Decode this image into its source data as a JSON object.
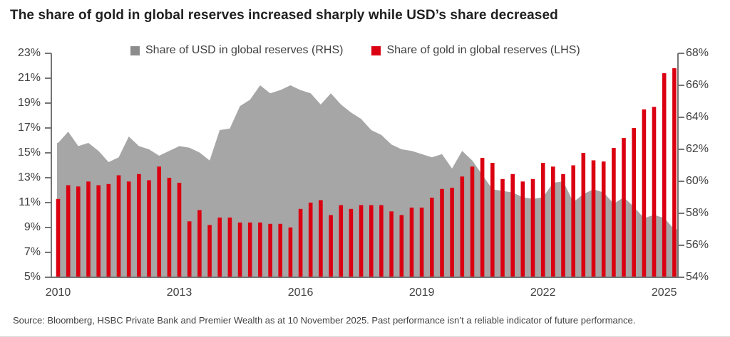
{
  "title": "The share of gold in global reserves increased sharply while USD’s share decreased",
  "source": "Source: Bloomberg, HSBC Private Bank and Premier Wealth as at 10 November 2025. Past performance isn’t a reliable indicator of future performance.",
  "legend": {
    "usd": "Share of USD in global reserves (RHS)",
    "gold": "Share of gold in global reserves (LHS)"
  },
  "colors": {
    "gold_bar": "#db0011",
    "usd_area": "#a6a6a6",
    "legend_usd_swatch": "#8c8c8c",
    "axis": "#757575",
    "tick_text": "#3f3f3f",
    "title_text": "#1f1f1f",
    "source_text": "#404040"
  },
  "chart_data": {
    "type": "combo-bar-area",
    "title": "The share of gold in global reserves increased sharply while USD’s share decreased",
    "grid": false,
    "legend_position": "top",
    "x_quarters": [
      "2010 Q1",
      "2010 Q2",
      "2010 Q3",
      "2010 Q4",
      "2011 Q1",
      "2011 Q2",
      "2011 Q3",
      "2011 Q4",
      "2012 Q1",
      "2012 Q2",
      "2012 Q3",
      "2012 Q4",
      "2013 Q1",
      "2013 Q2",
      "2013 Q3",
      "2013 Q4",
      "2014 Q1",
      "2014 Q2",
      "2014 Q3",
      "2014 Q4",
      "2015 Q1",
      "2015 Q2",
      "2015 Q3",
      "2015 Q4",
      "2016 Q1",
      "2016 Q2",
      "2016 Q3",
      "2016 Q4",
      "2017 Q1",
      "2017 Q2",
      "2017 Q3",
      "2017 Q4",
      "2018 Q1",
      "2018 Q2",
      "2018 Q3",
      "2018 Q4",
      "2019 Q1",
      "2019 Q2",
      "2019 Q3",
      "2019 Q4",
      "2020 Q1",
      "2020 Q2",
      "2020 Q3",
      "2020 Q4",
      "2021 Q1",
      "2021 Q2",
      "2021 Q3",
      "2021 Q4",
      "2022 Q1",
      "2022 Q2",
      "2022 Q3",
      "2022 Q4",
      "2023 Q1",
      "2023 Q2",
      "2023 Q3",
      "2023 Q4",
      "2024 Q1",
      "2024 Q2",
      "2024 Q3",
      "2024 Q4",
      "2025 Q1",
      "2025 Q2"
    ],
    "x_year_ticks": {
      "labels": [
        "2010",
        "2013",
        "2016",
        "2019",
        "2022",
        "2025"
      ],
      "quarter_indices": [
        0,
        12,
        24,
        36,
        48,
        60
      ]
    },
    "left_axis": {
      "series": "Share of gold in global reserves (LHS)",
      "unit": "%",
      "min": 5,
      "max": 23,
      "tick_step": 2,
      "tick_labels": [
        "23%",
        "21%",
        "19%",
        "17%",
        "15%",
        "13%",
        "11%",
        "9%",
        "7%",
        "5%"
      ]
    },
    "right_axis": {
      "series": "Share of USD in global reserves (RHS)",
      "unit": "%",
      "min": 54,
      "max": 68,
      "tick_step": 2,
      "tick_labels": [
        "68%",
        "66%",
        "64%",
        "62%",
        "60%",
        "58%",
        "56%",
        "54%"
      ]
    },
    "series": [
      {
        "name": "Share of USD in global reserves (RHS)",
        "type": "area",
        "axis": "right",
        "color": "#a6a6a6",
        "values": [
          62.4,
          63.1,
          62.2,
          62.4,
          61.9,
          61.2,
          61.5,
          62.8,
          62.2,
          62.0,
          61.6,
          61.9,
          62.2,
          62.1,
          61.8,
          61.3,
          63.2,
          63.3,
          64.7,
          65.1,
          66.0,
          65.5,
          65.7,
          66.0,
          65.7,
          65.5,
          64.8,
          65.5,
          64.8,
          64.3,
          63.9,
          63.2,
          62.9,
          62.3,
          62.0,
          61.9,
          61.7,
          61.5,
          61.7,
          60.8,
          61.9,
          61.3,
          60.4,
          59.5,
          59.4,
          59.3,
          59.0,
          58.9,
          59.0,
          59.9,
          60.0,
          58.7,
          59.2,
          59.5,
          59.3,
          58.6,
          59.0,
          58.4,
          57.7,
          57.9,
          57.7,
          57.0
        ]
      },
      {
        "name": "Share of gold in global reserves (LHS)",
        "type": "bar",
        "axis": "left",
        "color": "#db0011",
        "values": [
          11.3,
          12.4,
          12.3,
          12.7,
          12.4,
          12.5,
          13.2,
          12.7,
          13.3,
          12.8,
          13.9,
          13.0,
          12.6,
          9.5,
          10.4,
          9.2,
          9.8,
          9.8,
          9.4,
          9.4,
          9.4,
          9.3,
          9.3,
          9.0,
          10.5,
          11.0,
          11.2,
          10.0,
          10.8,
          10.5,
          10.8,
          10.8,
          10.8,
          10.3,
          10.0,
          10.6,
          10.6,
          11.4,
          12.1,
          12.2,
          13.1,
          13.9,
          14.6,
          14.2,
          12.9,
          13.3,
          12.7,
          12.9,
          14.2,
          13.9,
          13.3,
          14.0,
          15.0,
          14.4,
          14.3,
          15.4,
          16.2,
          17.0,
          18.5,
          18.7,
          21.4,
          21.8
        ]
      }
    ]
  }
}
